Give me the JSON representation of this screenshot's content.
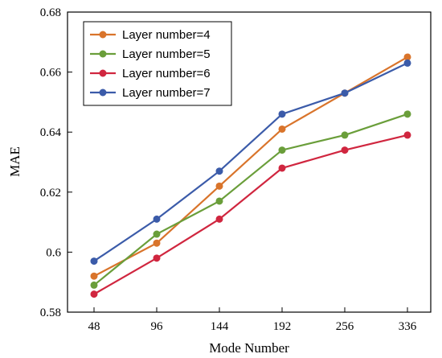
{
  "chart_data": {
    "type": "line",
    "title": "",
    "xlabel": "Mode Number",
    "ylabel": "MAE",
    "categories": [
      "48",
      "96",
      "144",
      "192",
      "256",
      "336"
    ],
    "ylim": [
      0.58,
      0.68
    ],
    "yticks": [
      "0.58",
      "0.6",
      "0.62",
      "0.64",
      "0.66",
      "0.68"
    ],
    "grid": false,
    "legend_position": "top-left",
    "series": [
      {
        "name": "Layer number=4",
        "color": "#D9742B",
        "values": [
          0.592,
          0.603,
          0.622,
          0.641,
          0.653,
          0.665
        ]
      },
      {
        "name": "Layer number=5",
        "color": "#6A9E3A",
        "values": [
          0.589,
          0.606,
          0.617,
          0.634,
          0.639,
          0.646
        ]
      },
      {
        "name": "Layer number=6",
        "color": "#D0263F",
        "values": [
          0.586,
          0.598,
          0.611,
          0.628,
          0.634,
          0.639
        ]
      },
      {
        "name": "Layer number=7",
        "color": "#3B5BA9",
        "values": [
          0.597,
          0.611,
          0.627,
          0.646,
          0.653,
          0.663
        ]
      }
    ]
  }
}
